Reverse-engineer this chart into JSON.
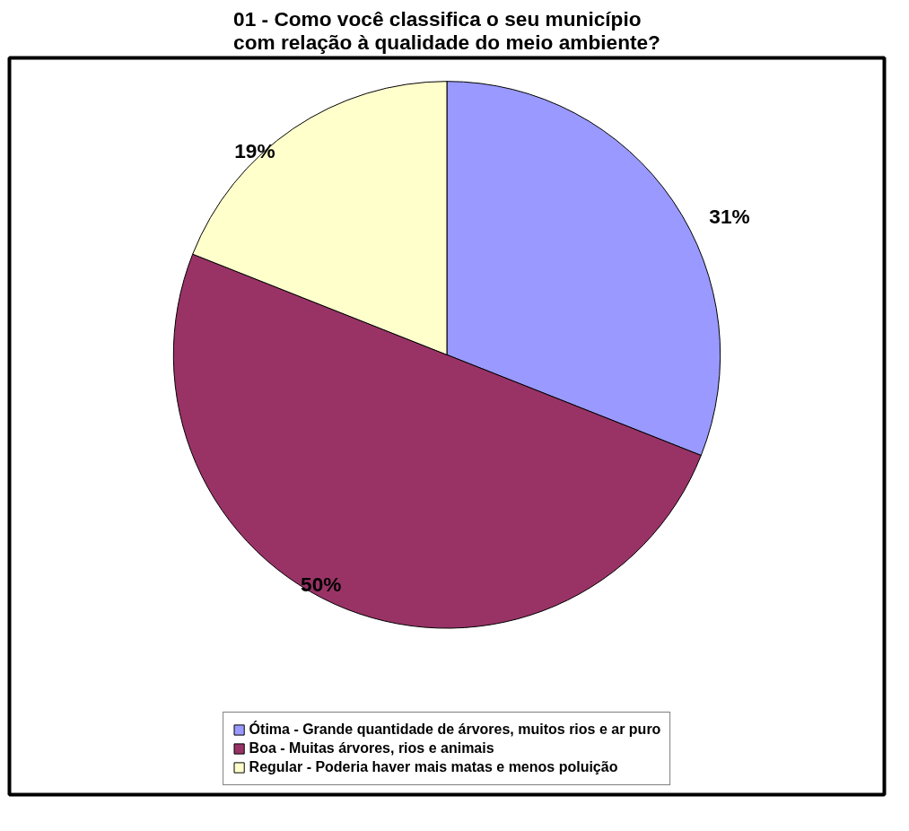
{
  "chart_data": {
    "type": "pie",
    "title": "01 - Como você classifica o seu município com relação à qualidade do meio ambiente?",
    "categories": [
      "Ótima - Grande quantidade de árvores, muitos rios e ar puro",
      "Boa - Muitas árvores, rios e animais",
      "Regular - Poderia haver mais matas e menos poluição"
    ],
    "values": [
      31,
      50,
      19
    ],
    "colors": [
      "#9999ff",
      "#993366",
      "#ffffcc"
    ],
    "value_labels": [
      "31%",
      "50%",
      "19%"
    ],
    "legend": "bottom"
  }
}
